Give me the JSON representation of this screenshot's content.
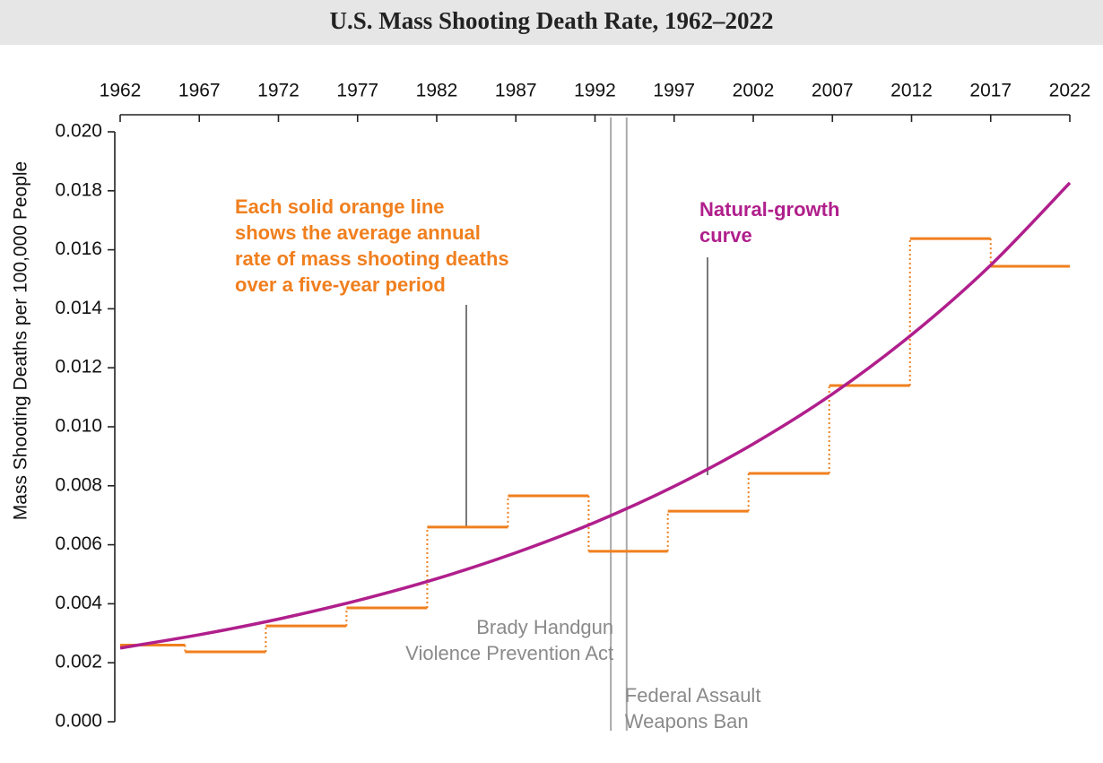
{
  "chart_data": {
    "type": "step",
    "title": "U.S. Mass Shooting Death Rate, 1962–2022",
    "y_label": "Mass Shooting Deaths per 100,000 People",
    "xlim": [
      1962,
      2022
    ],
    "xticks": [
      1962,
      1967,
      1972,
      1977,
      1982,
      1987,
      1992,
      1997,
      2002,
      2007,
      2012,
      2017,
      2022
    ],
    "ylim": [
      0,
      0.02
    ],
    "yticks": [
      {
        "value": 0,
        "label": "0.000"
      },
      {
        "value": 0.002,
        "label": "0.002"
      },
      {
        "value": 0.004,
        "label": "0.004"
      },
      {
        "value": 0.006,
        "label": "0.006"
      },
      {
        "value": 0.008,
        "label": "0.008"
      },
      {
        "value": 0.01,
        "label": "0.010"
      },
      {
        "value": 0.012,
        "label": "0.012"
      },
      {
        "value": 0.014,
        "label": "0.014"
      },
      {
        "value": 0.016,
        "label": "0.016"
      },
      {
        "value": 0.018,
        "label": "0.018"
      },
      {
        "value": 0.02,
        "label": "0.020"
      }
    ],
    "steps": {
      "color": "#f07f1e",
      "edges": [
        1962,
        1966.1,
        1971.2,
        1976.3,
        1981.4,
        1986.5,
        1991.6,
        1996.6,
        2001.7,
        2006.8,
        2011.9,
        2017,
        2022
      ],
      "values": [
        0.0026,
        0.00237,
        0.00325,
        0.00386,
        0.0066,
        0.00766,
        0.00578,
        0.00714,
        0.00842,
        0.0114,
        0.01638,
        0.01544
      ]
    },
    "curve": {
      "color": "#b01f8c",
      "x": [
        1962,
        1967,
        1972,
        1977,
        1982,
        1987,
        1992,
        1997,
        2002,
        2007,
        2012,
        2017,
        2022
      ],
      "values": [
        0.0025,
        0.00295,
        0.00348,
        0.00411,
        0.00485,
        0.00573,
        0.00676,
        0.00798,
        0.00942,
        0.01111,
        0.01312,
        0.01548,
        0.01827
      ]
    },
    "events": [
      {
        "x": 1993,
        "label": [
          "Brady Handgun",
          "Violence Prevention Act"
        ]
      },
      {
        "x": 1994,
        "label": [
          "Federal Assault",
          "Weapons Ban"
        ]
      }
    ],
    "annotations": [
      {
        "lines": [
          "Each solid orange line",
          "shows the average annual",
          "rate of mass shooting deaths",
          "over a five-year period"
        ]
      },
      {
        "lines": [
          "Natural-growth",
          "curve"
        ]
      }
    ]
  }
}
